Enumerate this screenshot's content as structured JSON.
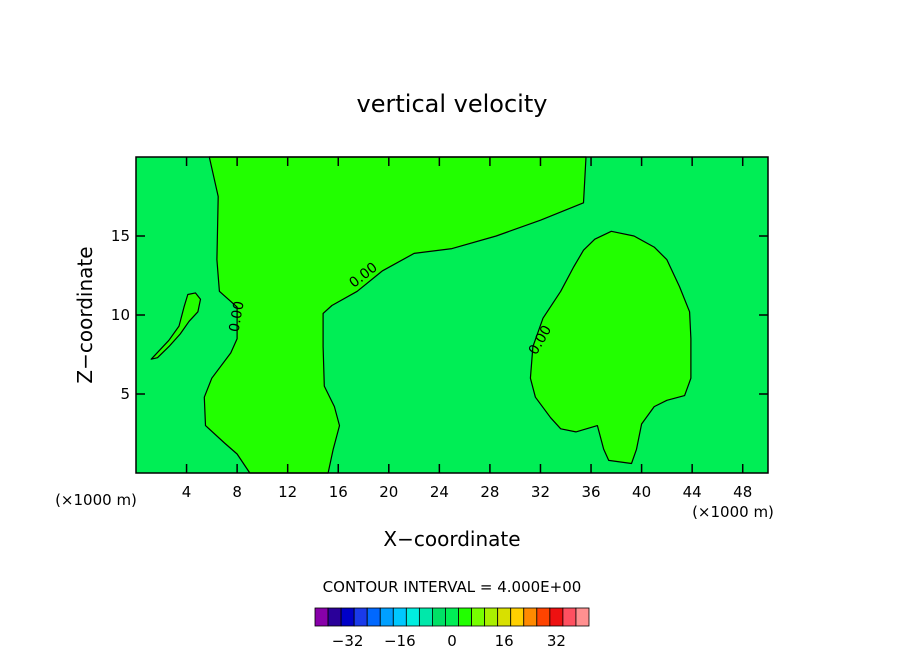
{
  "chart_data": {
    "type": "contour",
    "title": "vertical velocity",
    "xlabel": "X−coordinate",
    "ylabel": "Z−coordinate",
    "x_unit_label": "(×1000 m)",
    "z_unit_label": "(×1000 m)",
    "xlim": [
      0,
      50
    ],
    "ylim": [
      0,
      20
    ],
    "x_ticks": [
      4,
      8,
      12,
      16,
      20,
      24,
      28,
      32,
      36,
      40,
      44,
      48
    ],
    "y_ticks": [
      5,
      10,
      15
    ],
    "contour_interval_text": "CONTOUR INTERVAL = 4.000E+00",
    "contour_label": "0.00",
    "background_fill": "#00ee55",
    "positive_fill": "#22ff00",
    "regions": [
      {
        "name": "updraft-left",
        "sign": "positive",
        "points": [
          [
            5.8,
            20
          ],
          [
            35.6,
            20
          ],
          [
            35.4,
            17.1
          ],
          [
            32,
            16
          ],
          [
            28.5,
            15
          ],
          [
            25,
            14.2
          ],
          [
            22,
            13.9
          ],
          [
            19.5,
            12.8
          ],
          [
            17.5,
            11.5
          ],
          [
            15.5,
            10.6
          ],
          [
            14.8,
            10.1
          ],
          [
            14.8,
            8
          ],
          [
            14.9,
            5.5
          ],
          [
            15.7,
            4.2
          ],
          [
            16.1,
            3
          ],
          [
            15.6,
            1.5
          ],
          [
            15.2,
            0
          ],
          [
            9,
            0
          ],
          [
            8,
            1.2
          ],
          [
            7,
            1.9
          ],
          [
            5.5,
            3
          ],
          [
            5.4,
            4.8
          ],
          [
            6,
            6
          ],
          [
            7.5,
            7.6
          ],
          [
            8,
            8.5
          ],
          [
            8,
            10.5
          ],
          [
            6.6,
            11.5
          ],
          [
            6.4,
            13.5
          ],
          [
            6.5,
            17.5
          ]
        ]
      },
      {
        "name": "updraft-right",
        "sign": "positive",
        "points": [
          [
            32.8,
            3.5
          ],
          [
            31.6,
            4.8
          ],
          [
            31.2,
            6
          ],
          [
            31.4,
            8
          ],
          [
            32.2,
            9.8
          ],
          [
            33.6,
            11.5
          ],
          [
            34.6,
            13
          ],
          [
            35.4,
            14.1
          ],
          [
            36.3,
            14.8
          ],
          [
            37.6,
            15.3
          ],
          [
            39.4,
            15
          ],
          [
            41,
            14.3
          ],
          [
            42,
            13.5
          ],
          [
            43,
            11.8
          ],
          [
            43.8,
            10.2
          ],
          [
            43.9,
            8.5
          ],
          [
            43.9,
            6
          ],
          [
            43.4,
            4.9
          ],
          [
            42,
            4.6
          ],
          [
            41,
            4.2
          ],
          [
            40,
            3.1
          ],
          [
            39.6,
            1.5
          ],
          [
            39.2,
            0.6
          ],
          [
            37.4,
            0.8
          ],
          [
            37,
            1.5
          ],
          [
            36.5,
            3
          ],
          [
            34.8,
            2.6
          ],
          [
            33.6,
            2.8
          ]
        ]
      },
      {
        "name": "updraft-left-edge",
        "sign": "positive",
        "points": [
          [
            1.2,
            7.2
          ],
          [
            2.6,
            8.4
          ],
          [
            3.4,
            9.3
          ],
          [
            3.8,
            10.5
          ],
          [
            4.1,
            11.3
          ],
          [
            4.7,
            11.4
          ],
          [
            5.1,
            11
          ],
          [
            4.9,
            10.2
          ],
          [
            4.2,
            9.6
          ],
          [
            3.5,
            8.8
          ],
          [
            2.6,
            8
          ],
          [
            1.7,
            7.3
          ]
        ]
      }
    ]
  },
  "colorbar": {
    "colors": [
      "#8800aa",
      "#2a0099",
      "#0000c8",
      "#1a3aea",
      "#0068ff",
      "#00a0ff",
      "#00c8ff",
      "#00eee0",
      "#00e8aa",
      "#00e066",
      "#00ee55",
      "#22ff00",
      "#77ff00",
      "#aaf000",
      "#d8e000",
      "#ffd000",
      "#ff8a00",
      "#ff4400",
      "#ee1111",
      "#ff5060",
      "#ff9090"
    ],
    "labels": [
      "−32",
      "−16",
      "0",
      "16",
      "32"
    ]
  }
}
